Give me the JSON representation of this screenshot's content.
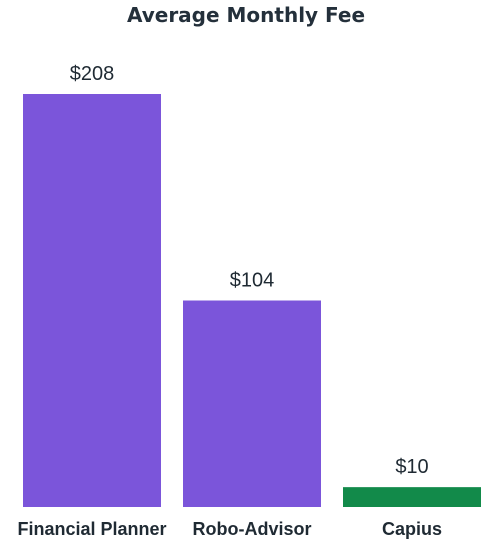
{
  "chart_data": {
    "type": "bar",
    "title": "Average Monthly Fee",
    "xlabel": "",
    "ylabel": "",
    "ylim": [
      0,
      208
    ],
    "grid": false,
    "categories": [
      "Financial Planner",
      "Robo-Advisor",
      "Capius"
    ],
    "values": [
      208,
      104,
      10
    ],
    "value_labels": [
      "$208",
      "$104",
      "$10"
    ],
    "colors": [
      "#7b55da",
      "#7b55da",
      "#128a4a"
    ]
  }
}
